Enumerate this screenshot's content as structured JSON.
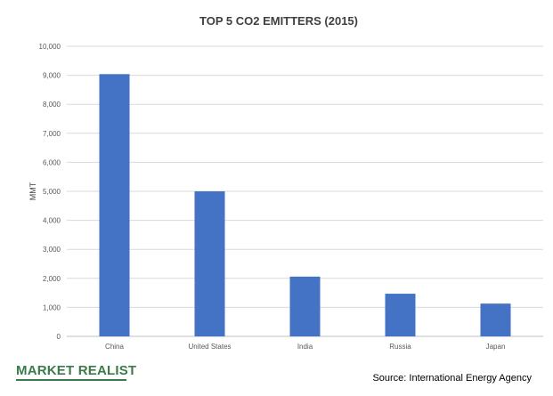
{
  "chart_data": {
    "type": "bar",
    "title": "TOP 5 CO2  EMITTERS (2015)",
    "xlabel": "",
    "ylabel": "MMT",
    "categories": [
      "China",
      "United States",
      "India",
      "Russia",
      "Japan"
    ],
    "values": [
      9040,
      5000,
      2060,
      1470,
      1130
    ],
    "ylim": [
      0,
      10000
    ],
    "yticks": [
      0,
      1000,
      2000,
      3000,
      4000,
      5000,
      6000,
      7000,
      8000,
      9000,
      10000
    ],
    "ytick_labels": [
      "0",
      "1,000",
      "2,000",
      "3,000",
      "4,000",
      "5,000",
      "6,000",
      "7,000",
      "8,000",
      "9,000",
      "10,000"
    ],
    "grid": true,
    "bar_color": "#4472c4"
  },
  "footer": {
    "logo_text": "MARKET REALIST",
    "source": "Source: International Energy Agency"
  },
  "colors": {
    "logo": "#3b7a4a"
  }
}
